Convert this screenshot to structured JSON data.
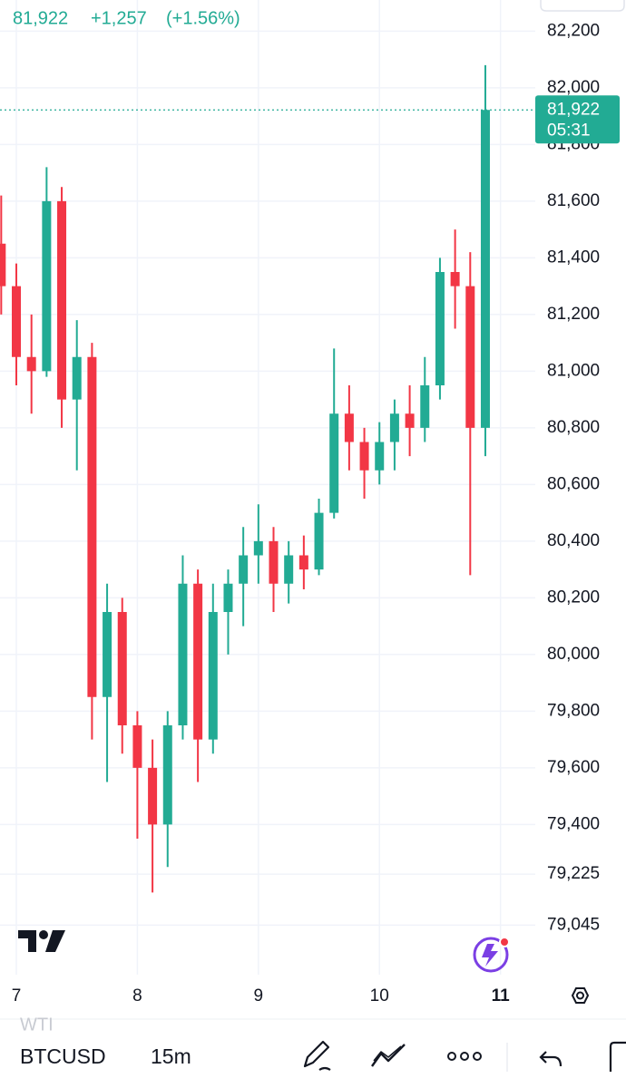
{
  "chart_data": {
    "type": "candlestick",
    "header": {
      "price": "81,922",
      "change": "+1,257",
      "change_pct": "(+1.56%)"
    },
    "x": [
      6.875,
      7.0,
      7.125,
      7.25,
      7.375,
      7.5,
      7.625,
      7.75,
      7.875,
      8.0,
      8.125,
      8.25,
      8.375,
      8.5,
      8.625,
      8.75,
      8.875,
      9.0,
      9.125,
      9.25,
      9.375,
      9.5,
      9.625,
      9.75,
      9.875,
      10.0,
      10.125,
      10.25,
      10.375,
      10.5,
      10.625,
      10.75,
      10.875
    ],
    "open": [
      81450,
      81300,
      81050,
      81000,
      81600,
      80900,
      81050,
      79850,
      80150,
      79750,
      79600,
      79400,
      79750,
      80250,
      79700,
      80150,
      80250,
      80350,
      80400,
      80250,
      80350,
      80300,
      80500,
      80850,
      80750,
      80650,
      80750,
      80850,
      80800,
      80950,
      81350,
      81300,
      80800
    ],
    "high": [
      81620,
      81380,
      81200,
      81720,
      81650,
      81180,
      81100,
      80250,
      80200,
      79800,
      79700,
      79800,
      80350,
      80300,
      80250,
      80300,
      80450,
      80530,
      80450,
      80400,
      80420,
      80550,
      81080,
      80950,
      80800,
      80820,
      80900,
      80950,
      81050,
      81400,
      81500,
      81420,
      82080
    ],
    "low": [
      81200,
      80950,
      80850,
      80980,
      80800,
      80650,
      79700,
      79550,
      79650,
      79350,
      79160,
      79250,
      79700,
      79550,
      79650,
      80000,
      80100,
      80250,
      80150,
      80180,
      80230,
      80280,
      80480,
      80650,
      80550,
      80600,
      80650,
      80700,
      80750,
      80900,
      81150,
      80280,
      80700
    ],
    "close": [
      81300,
      81050,
      81000,
      81600,
      80900,
      81050,
      79850,
      80150,
      79750,
      79600,
      79400,
      79750,
      80250,
      79700,
      80150,
      80250,
      80350,
      80400,
      80250,
      80350,
      80300,
      80500,
      80850,
      80750,
      80650,
      80750,
      80850,
      80800,
      80950,
      81350,
      81300,
      80800,
      81922
    ],
    "up_color": "#22ab94",
    "down_color": "#f23645",
    "xlim": [
      6.865,
      11.25
    ],
    "xticks": [
      7,
      8,
      9,
      10,
      11
    ],
    "ylim": [
      78870,
      82310
    ],
    "yticks": [
      {
        "value": 82200,
        "label": "82,200"
      },
      {
        "value": 82000,
        "label": "82,000"
      },
      {
        "value": 81800,
        "label": "81,800"
      },
      {
        "value": 81600,
        "label": "81,600"
      },
      {
        "value": 81400,
        "label": "81,400"
      },
      {
        "value": 81200,
        "label": "81,200"
      },
      {
        "value": 81000,
        "label": "81,000"
      },
      {
        "value": 80800,
        "label": "80,800"
      },
      {
        "value": 80600,
        "label": "80,600"
      },
      {
        "value": 80400,
        "label": "80,400"
      },
      {
        "value": 80200,
        "label": "80,200"
      },
      {
        "value": 80000,
        "label": "80,000"
      },
      {
        "value": 79800,
        "label": "79,800"
      },
      {
        "value": 79600,
        "label": "79,600"
      },
      {
        "value": 79400,
        "label": "79,400"
      },
      {
        "value": 79225,
        "label": "79,225"
      },
      {
        "value": 79045,
        "label": "79,045"
      }
    ],
    "grid": true,
    "last_price": {
      "value": 81922,
      "label": "81,922"
    },
    "countdown": "05:31"
  },
  "toolbar": {
    "symbol": "BTCUSD",
    "interval": "15m",
    "other_symbol": "WTI"
  }
}
